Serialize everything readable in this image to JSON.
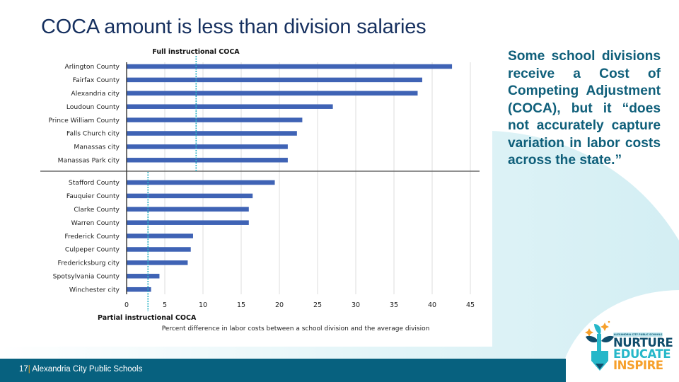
{
  "slide": {
    "title": "COCA amount is less than division salaries",
    "side_text": "Some school divisions receive a Cost of Competing Adjustment (COCA), but it “does not accurately capture variation in labor costs across the state.”",
    "footer": {
      "page_number": "17",
      "separator": "|",
      "org_name": " Alexandria City Public Schools"
    },
    "logo": {
      "small_text": "ALEXANDRIA CITY PUBLIC SCHOOLS",
      "line1": "NURTURE",
      "line2": "EDUCATE",
      "line3": "INSPIRE"
    },
    "colors": {
      "title": "#16305f",
      "bar": "#3f63b5",
      "coca_line": "#2bb3c6",
      "side_text": "#0f5f7a",
      "footer_bar": "#07617f",
      "footer_separator": "#f3a623",
      "swoosh": "#d9f1f5"
    }
  },
  "chart_data": {
    "type": "bar",
    "orientation": "horizontal",
    "title": "",
    "xlabel": "Percent difference in labor costs between a school division and the average division",
    "ylabel": "",
    "xlim": [
      0,
      45
    ],
    "xticks": [
      0,
      5,
      10,
      15,
      20,
      25,
      30,
      35,
      40,
      45
    ],
    "grid": "vertical",
    "groups": [
      {
        "name": "Full instructional COCA",
        "coca_level": 9.1,
        "categories": [
          "Arlington County",
          "Fairfax County",
          "Alexandria city",
          "Loudoun County",
          "Prince William County",
          "Falls Church city",
          "Manassas city",
          "Manassas Park city"
        ],
        "values": [
          42.6,
          38.7,
          38.1,
          27.0,
          23.0,
          22.3,
          21.1,
          21.1
        ]
      },
      {
        "name": "Partial instructional COCA",
        "coca_level": 2.8,
        "categories": [
          "Stafford County",
          "Fauquier County",
          "Clarke County",
          "Warren County",
          "Frederick County",
          "Culpeper County",
          "Fredericksburg city",
          "Spotsylvania County",
          "Winchester city"
        ],
        "values": [
          19.4,
          16.5,
          16.0,
          16.0,
          8.7,
          8.4,
          8.0,
          4.3,
          3.2
        ]
      }
    ],
    "annotations": [
      "Full instructional COCA",
      "Partial instructional COCA"
    ]
  }
}
